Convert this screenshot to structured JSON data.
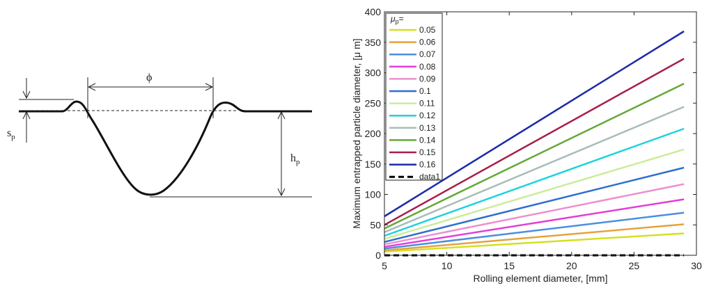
{
  "diagram": {
    "labels": {
      "sp": "s",
      "sp_sub": "p",
      "hp": "h",
      "hp_sub": "p",
      "phi": "ϕ"
    }
  },
  "chart_data": {
    "type": "line",
    "xlabel": "Rolling element diameter, [mm]",
    "ylabel": "Maximum entrapped particle diameter, [μ m]",
    "xlim": [
      5,
      30
    ],
    "ylim": [
      0,
      400
    ],
    "xticks": [
      5,
      10,
      15,
      20,
      25,
      30
    ],
    "yticks": [
      0,
      50,
      100,
      150,
      200,
      250,
      300,
      350,
      400
    ],
    "grid": false,
    "legend_title": "μ",
    "legend_title_sub": "p",
    "legend_title_suffix": "=",
    "legend_position": "top-left",
    "x": [
      5,
      29
    ],
    "series": [
      {
        "name": "0.05",
        "values": [
          6,
          36
        ],
        "color": "#d4e021"
      },
      {
        "name": "0.06",
        "values": [
          8,
          51
        ],
        "color": "#e6a23c"
      },
      {
        "name": "0.07",
        "values": [
          11,
          70
        ],
        "color": "#4a8fe0"
      },
      {
        "name": "0.08",
        "values": [
          14,
          92
        ],
        "color": "#e43ed8"
      },
      {
        "name": "0.09",
        "values": [
          18,
          117
        ],
        "color": "#ee8ed0"
      },
      {
        "name": "0.1",
        "values": [
          22,
          144
        ],
        "color": "#2e6fd0"
      },
      {
        "name": "0.11",
        "values": [
          27,
          174
        ],
        "color": "#cdeb9a"
      },
      {
        "name": "0.12",
        "values": [
          32,
          208
        ],
        "color": "#1cd2de"
      },
      {
        "name": "0.13",
        "values": [
          38,
          244
        ],
        "color": "#a8bdb9"
      },
      {
        "name": "0.14",
        "values": [
          44,
          282
        ],
        "color": "#64a838"
      },
      {
        "name": "0.15",
        "values": [
          50,
          323
        ],
        "color": "#a81e4a"
      },
      {
        "name": "0.16",
        "values": [
          64,
          368
        ],
        "color": "#1c2aa8"
      },
      {
        "name": "data1",
        "values": [
          0,
          0
        ],
        "color": "#000000",
        "dashed": true
      }
    ]
  }
}
